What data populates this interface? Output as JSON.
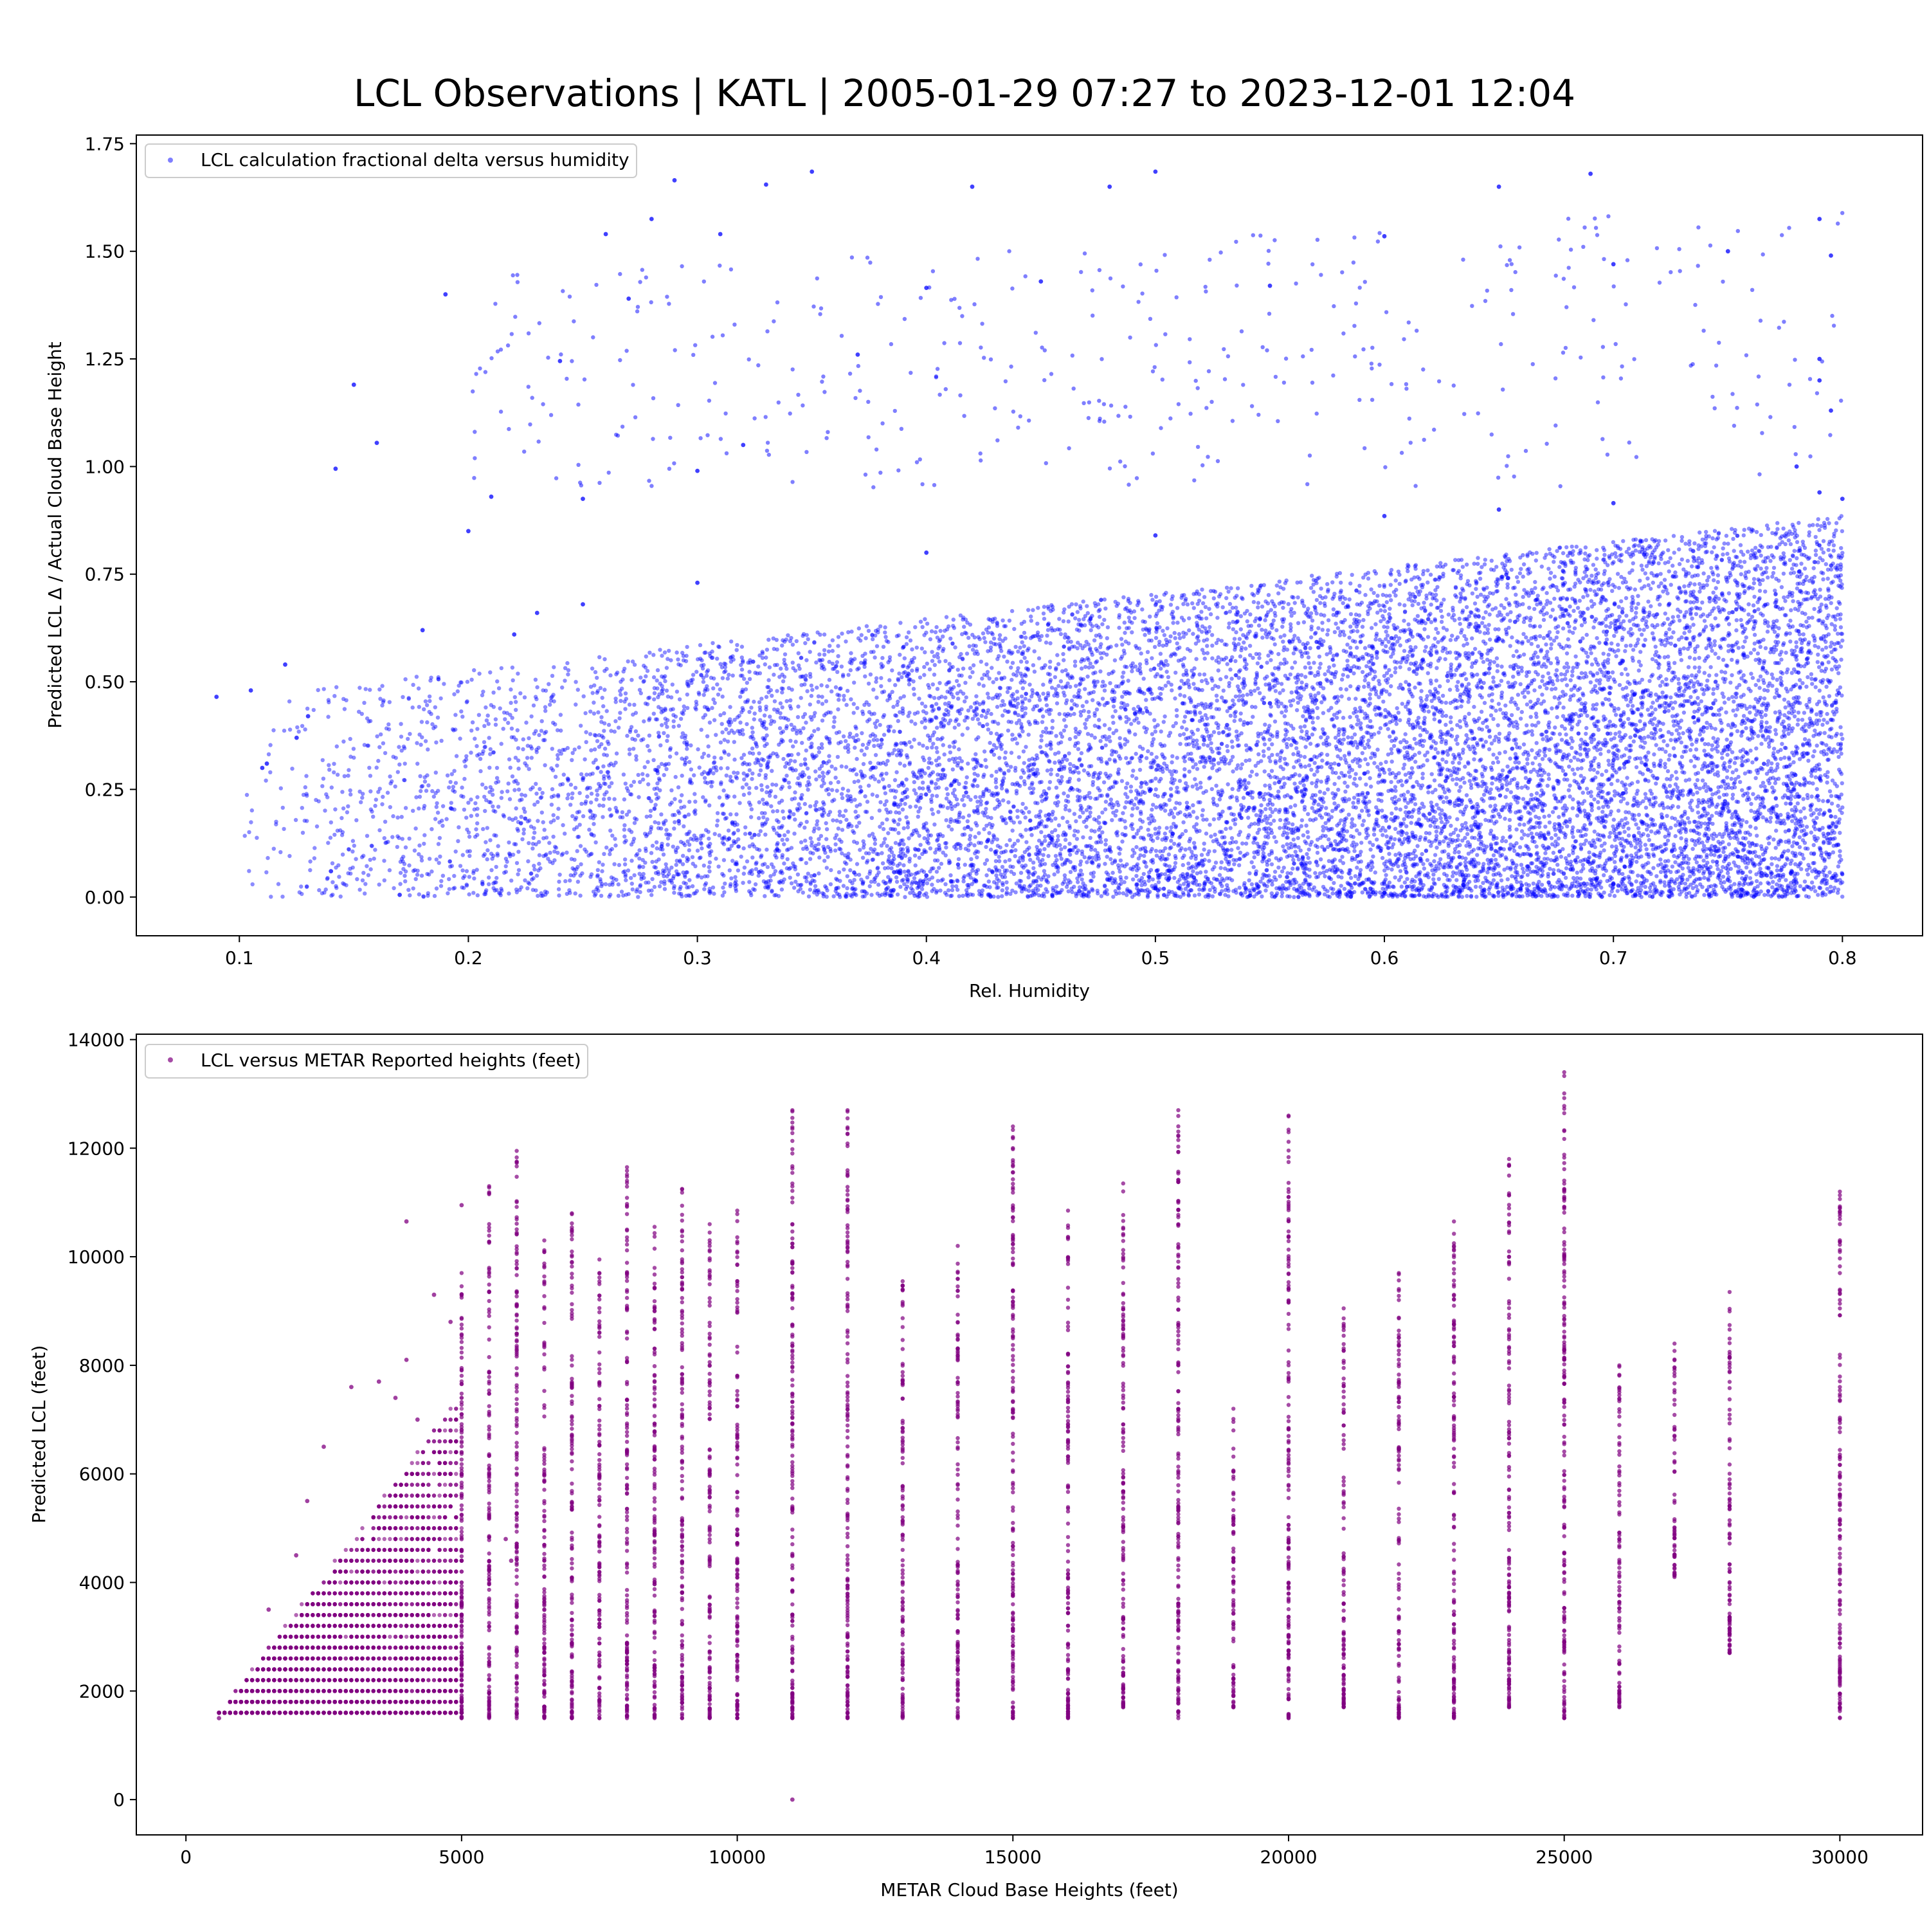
{
  "figure": {
    "title": "LCL Observations | KATL | 2005-01-29 07:27 to 2023-12-01 12:04"
  },
  "chart_data": [
    {
      "type": "scatter",
      "xlabel": "Rel. Humidity",
      "ylabel": "Predicted LCL Δ / Actual Cloud Base Height",
      "xlim": [
        0.055,
        0.835
      ],
      "ylim": [
        -0.09,
        1.77
      ],
      "xticks": [
        0.1,
        0.2,
        0.3,
        0.4,
        0.5,
        0.6,
        0.7,
        0.8
      ],
      "xtick_labels": [
        "0.1",
        "0.2",
        "0.3",
        "0.4",
        "0.5",
        "0.6",
        "0.7",
        "0.8"
      ],
      "yticks": [
        0.0,
        0.25,
        0.5,
        0.75,
        1.0,
        1.25,
        1.5,
        1.75
      ],
      "ytick_labels": [
        "0.00",
        "0.25",
        "0.50",
        "0.75",
        "1.00",
        "1.25",
        "1.50",
        "1.75"
      ],
      "grid": false,
      "legend_position": "upper left",
      "series": [
        {
          "name": "LCL calculation fractional delta versus humidity",
          "color": "#0000ff",
          "points": [
            [
              0.09,
              0.465
            ],
            [
              0.105,
              0.48
            ],
            [
              0.11,
              0.3
            ],
            [
              0.112,
              0.31
            ],
            [
              0.12,
              0.54
            ],
            [
              0.125,
              0.37
            ],
            [
              0.13,
              0.42
            ],
            [
              0.14,
              0.06
            ],
            [
              0.142,
              0.995
            ],
            [
              0.15,
              1.19
            ],
            [
              0.16,
              1.055
            ],
            [
              0.17,
              0.005
            ],
            [
              0.18,
              0.62
            ],
            [
              0.19,
              1.4
            ],
            [
              0.2,
              0.85
            ],
            [
              0.21,
              0.93
            ],
            [
              0.22,
              0.61
            ],
            [
              0.23,
              0.66
            ],
            [
              0.24,
              1.245
            ],
            [
              0.25,
              0.925
            ],
            [
              0.26,
              1.54
            ],
            [
              0.27,
              1.39
            ],
            [
              0.28,
              1.575
            ],
            [
              0.29,
              1.665
            ],
            [
              0.3,
              0.99
            ],
            [
              0.31,
              1.54
            ],
            [
              0.32,
              1.05
            ],
            [
              0.33,
              1.655
            ],
            [
              0.35,
              1.685
            ],
            [
              0.37,
              1.26
            ],
            [
              0.4,
              1.415
            ],
            [
              0.42,
              1.65
            ],
            [
              0.45,
              1.43
            ],
            [
              0.48,
              1.65
            ],
            [
              0.5,
              1.685
            ],
            [
              0.55,
              1.42
            ],
            [
              0.6,
              1.535
            ],
            [
              0.65,
              1.65
            ],
            [
              0.69,
              1.68
            ],
            [
              0.7,
              1.47
            ],
            [
              0.75,
              1.5
            ],
            [
              0.79,
              1.575
            ],
            [
              0.795,
              1.49
            ],
            [
              0.795,
              1.13
            ],
            [
              0.79,
              1.25
            ],
            [
              0.79,
              1.2
            ],
            [
              0.78,
              1.0
            ],
            [
              0.79,
              0.94
            ],
            [
              0.8,
              0.925
            ],
            [
              0.65,
              0.9
            ],
            [
              0.7,
              0.915
            ],
            [
              0.6,
              0.885
            ],
            [
              0.5,
              0.84
            ],
            [
              0.4,
              0.8
            ],
            [
              0.3,
              0.73
            ],
            [
              0.25,
              0.68
            ],
            [
              0.5,
              0.02
            ],
            [
              0.6,
              0.01
            ],
            [
              0.7,
              0.03
            ],
            [
              0.4,
              0.05
            ],
            [
              0.55,
              0.45
            ],
            [
              0.65,
              0.6
            ],
            [
              0.75,
              0.35
            ]
          ]
        }
      ]
    },
    {
      "type": "scatter",
      "xlabel": "METAR Cloud Base Heights (feet)",
      "ylabel": "Predicted LCL (feet)",
      "xlim": [
        -900,
        31500
      ],
      "ylim": [
        -650,
        14100
      ],
      "xticks": [
        0,
        5000,
        10000,
        15000,
        20000,
        25000,
        30000
      ],
      "xtick_labels": [
        "0",
        "5000",
        "10000",
        "15000",
        "20000",
        "25000",
        "30000"
      ],
      "yticks": [
        0,
        2000,
        4000,
        6000,
        8000,
        10000,
        12000,
        14000
      ],
      "ytick_labels": [
        "0",
        "2000",
        "4000",
        "6000",
        "8000",
        "10000",
        "12000",
        "14000"
      ],
      "grid": false,
      "legend_position": "upper left",
      "series": [
        {
          "name": "LCL versus METAR Reported heights (feet)",
          "color": "#800080",
          "columns": [
            {
              "x": 5000,
              "min": 1500,
              "max": 9700
            },
            {
              "x": 5500,
              "min": 1500,
              "max": 11300
            },
            {
              "x": 6000,
              "min": 1500,
              "max": 11950
            },
            {
              "x": 6500,
              "min": 1500,
              "max": 10300
            },
            {
              "x": 7000,
              "min": 1500,
              "max": 10800
            },
            {
              "x": 7500,
              "min": 1500,
              "max": 9950
            },
            {
              "x": 8000,
              "min": 1500,
              "max": 11650
            },
            {
              "x": 8500,
              "min": 1500,
              "max": 10550
            },
            {
              "x": 9000,
              "min": 1500,
              "max": 11250
            },
            {
              "x": 9500,
              "min": 1500,
              "max": 10600
            },
            {
              "x": 10000,
              "min": 1500,
              "max": 10850
            },
            {
              "x": 11000,
              "min": 1500,
              "max": 12700
            },
            {
              "x": 12000,
              "min": 1500,
              "max": 12700
            },
            {
              "x": 13000,
              "min": 1500,
              "max": 9550
            },
            {
              "x": 14000,
              "min": 1500,
              "max": 10200
            },
            {
              "x": 15000,
              "min": 1500,
              "max": 12400
            },
            {
              "x": 16000,
              "min": 1500,
              "max": 10850
            },
            {
              "x": 17000,
              "min": 1700,
              "max": 11350
            },
            {
              "x": 18000,
              "min": 1500,
              "max": 12700
            },
            {
              "x": 19000,
              "min": 1700,
              "max": 7200
            },
            {
              "x": 20000,
              "min": 1500,
              "max": 12600
            },
            {
              "x": 21000,
              "min": 1700,
              "max": 9050
            },
            {
              "x": 22000,
              "min": 1500,
              "max": 9700
            },
            {
              "x": 23000,
              "min": 1500,
              "max": 10650
            },
            {
              "x": 24000,
              "min": 1700,
              "max": 11800
            },
            {
              "x": 25000,
              "min": 1500,
              "max": 13400
            },
            {
              "x": 26000,
              "min": 1700,
              "max": 8000
            },
            {
              "x": 27000,
              "min": 4100,
              "max": 8400
            },
            {
              "x": 28000,
              "min": 2700,
              "max": 9350
            },
            {
              "x": 30000,
              "min": 1500,
              "max": 11200
            }
          ],
          "points": [
            [
              600,
              1500
            ],
            [
              1000,
              2000
            ],
            [
              1500,
              3500
            ],
            [
              2000,
              4500
            ],
            [
              2500,
              6500
            ],
            [
              3000,
              7600
            ],
            [
              3500,
              7700
            ],
            [
              4000,
              10650
            ],
            [
              4000,
              8100
            ],
            [
              4500,
              9300
            ],
            [
              4800,
              8800
            ],
            [
              5000,
              10950
            ],
            [
              11000,
              0
            ],
            [
              5800,
              4800
            ],
            [
              5900,
              4400
            ],
            [
              4200,
              7000
            ],
            [
              3800,
              7400
            ],
            [
              2200,
              5500
            ]
          ]
        }
      ]
    }
  ]
}
